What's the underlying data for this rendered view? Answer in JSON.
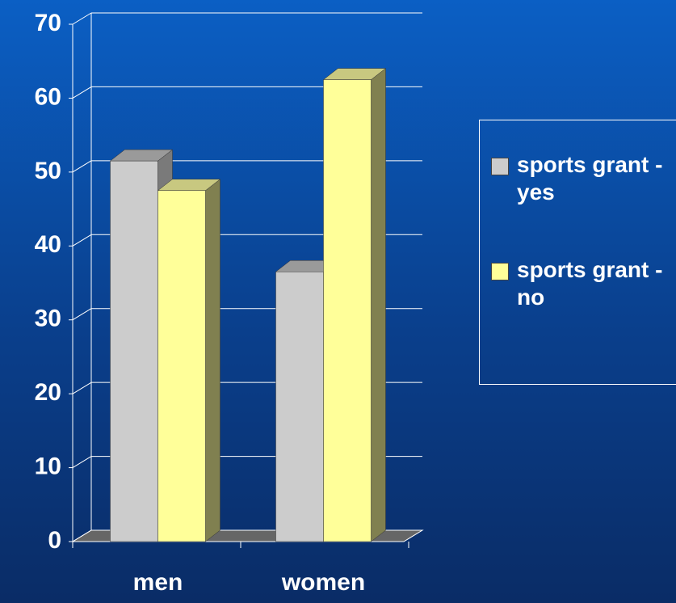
{
  "chart_data": {
    "type": "bar3d",
    "categories": [
      "men",
      "women"
    ],
    "series": [
      {
        "name": "sports grant - yes",
        "color": "#cccccc",
        "values": [
          51.5,
          36.5
        ]
      },
      {
        "name": "sports grant - no",
        "color": "#ffff99",
        "values": [
          47.5,
          62.5
        ]
      }
    ],
    "ylim": [
      0,
      70
    ],
    "yticks": [
      0,
      10,
      20,
      30,
      40,
      50,
      60,
      70
    ],
    "grid": true,
    "legend": "right"
  }
}
